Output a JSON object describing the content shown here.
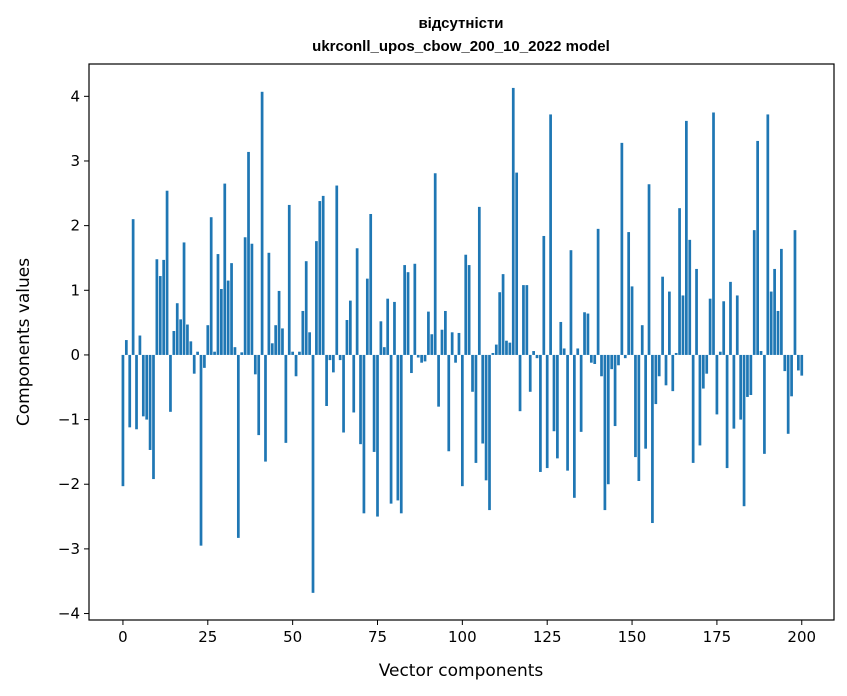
{
  "chart_data": {
    "type": "bar",
    "title": "відсутністи",
    "subtitle": "ukrconll_upos_cbow_200_10_2022 model",
    "xlabel": "Vector components",
    "ylabel": "Components values",
    "xlim": [
      -10,
      209.5
    ],
    "ylim": [
      -4.1,
      4.5
    ],
    "xticks": [
      0,
      25,
      50,
      75,
      100,
      125,
      150,
      175,
      200
    ],
    "yticks": [
      -4,
      -3,
      -2,
      -1,
      0,
      1,
      2,
      3,
      4
    ],
    "grid": false,
    "color": "#1f77b4",
    "values": [
      -2.03,
      0.23,
      -1.12,
      2.1,
      -1.15,
      0.3,
      -0.95,
      -1.0,
      -1.47,
      -1.92,
      1.48,
      1.22,
      1.47,
      2.54,
      -0.88,
      0.37,
      0.8,
      0.55,
      1.74,
      0.47,
      0.21,
      -0.29,
      0.05,
      -2.95,
      -0.2,
      0.46,
      2.13,
      0.05,
      1.56,
      1.02,
      2.65,
      1.15,
      1.42,
      0.12,
      -2.83,
      0.04,
      1.82,
      3.14,
      1.72,
      -0.3,
      -1.24,
      4.07,
      -1.65,
      1.58,
      0.18,
      0.46,
      0.99,
      0.41,
      -1.36,
      2.32,
      0.05,
      -0.33,
      0.05,
      0.68,
      1.45,
      0.35,
      -3.68,
      1.76,
      2.38,
      2.46,
      -0.79,
      -0.08,
      -0.27,
      2.62,
      -0.08,
      -1.2,
      0.54,
      0.84,
      -0.89,
      1.65,
      -1.38,
      -2.45,
      1.18,
      2.18,
      -1.5,
      -2.5,
      0.52,
      0.12,
      0.87,
      -2.3,
      0.82,
      -2.25,
      -2.45,
      1.39,
      1.28,
      -0.28,
      1.41,
      -0.04,
      -0.12,
      -0.1,
      0.67,
      0.32,
      2.81,
      -0.8,
      0.39,
      0.68,
      -1.49,
      0.35,
      -0.12,
      0.34,
      -2.03,
      1.55,
      1.39,
      -0.57,
      -1.67,
      2.29,
      -1.37,
      -1.94,
      -2.4,
      0.03,
      0.16,
      0.97,
      1.25,
      0.22,
      0.19,
      4.13,
      2.82,
      -0.87,
      1.08,
      1.08,
      -0.57,
      0.06,
      -0.05,
      -1.81,
      1.84,
      -1.75,
      3.72,
      -1.18,
      -1.6,
      0.51,
      0.1,
      -1.79,
      1.62,
      -2.21,
      0.1,
      -1.19,
      0.66,
      0.64,
      -0.12,
      -0.14,
      1.95,
      -0.33,
      -2.4,
      -2.0,
      -0.22,
      -1.1,
      -0.16,
      3.28,
      -0.05,
      1.9,
      1.06,
      -1.58,
      -1.95,
      0.46,
      -1.45,
      2.64,
      -2.6,
      -0.76,
      -0.33,
      1.21,
      -0.47,
      0.98,
      -0.56,
      0.03,
      2.27,
      0.92,
      3.62,
      1.78,
      -1.67,
      1.33,
      -1.4,
      -0.52,
      -0.29,
      0.87,
      3.75,
      -0.92,
      0.05,
      0.83,
      -1.75,
      1.13,
      -1.14,
      0.92,
      -1.0,
      -2.34,
      -0.65,
      -0.62,
      1.93,
      3.31,
      0.06,
      -1.53,
      3.72,
      0.98,
      1.33,
      0.68,
      1.64,
      -0.25,
      -1.22,
      -0.64,
      1.93,
      -0.24,
      -0.32
    ]
  }
}
